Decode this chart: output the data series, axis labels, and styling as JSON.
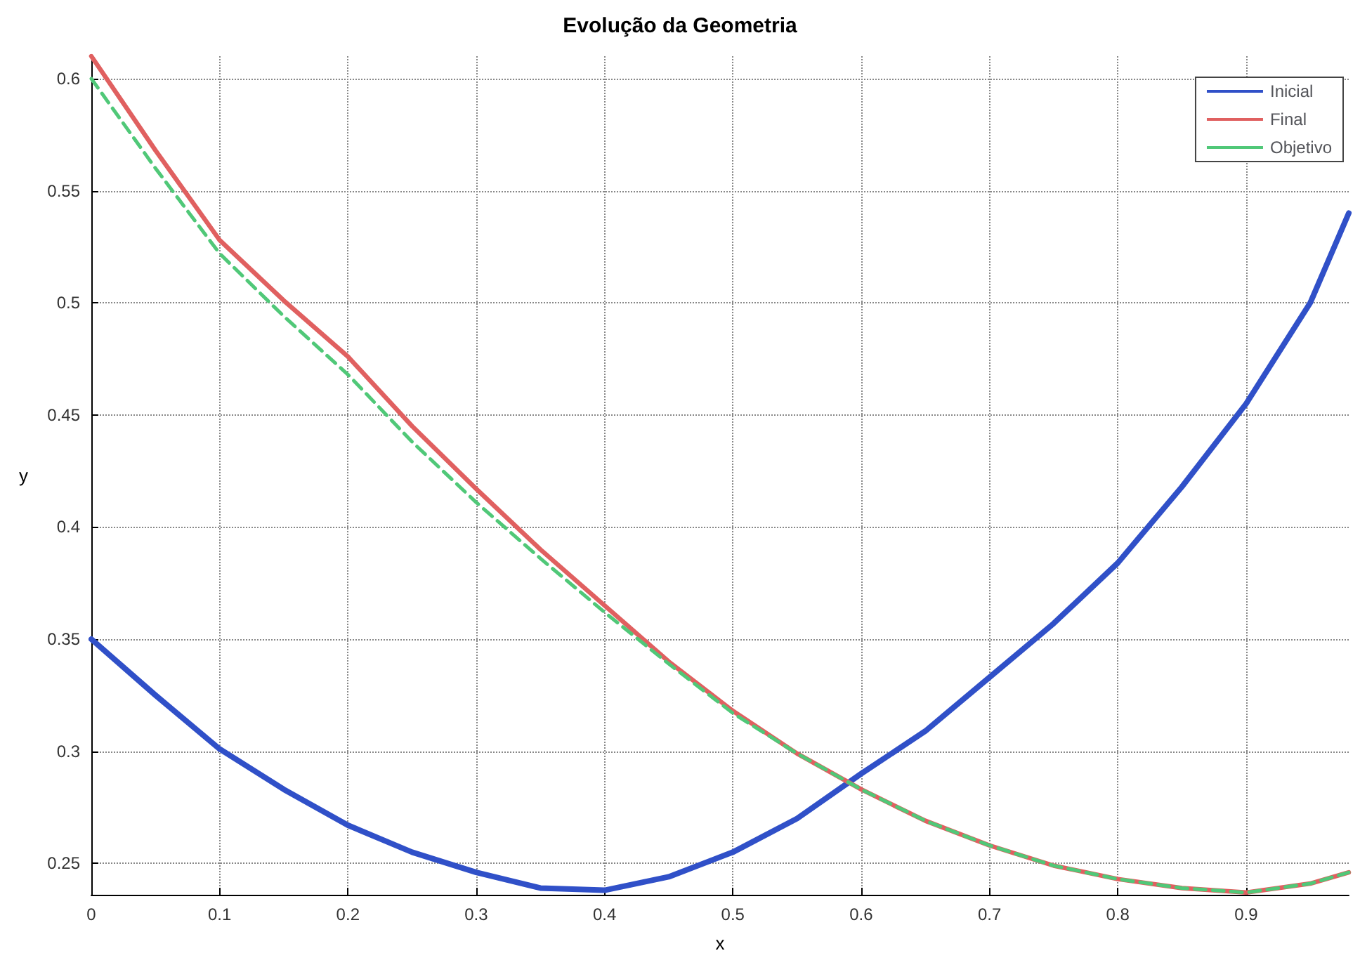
{
  "chart_data": {
    "type": "line",
    "title": "Evolução da Geometria",
    "xlabel": "x",
    "ylabel": "y",
    "x": [
      0,
      0.05,
      0.1,
      0.15,
      0.2,
      0.25,
      0.3,
      0.35,
      0.4,
      0.45,
      0.5,
      0.55,
      0.6,
      0.65,
      0.7,
      0.75,
      0.8,
      0.85,
      0.9,
      0.95,
      0.98
    ],
    "series": [
      {
        "name": "Inicial",
        "color": "#3050c8",
        "line_style": "solid",
        "values": [
          0.35,
          0.325,
          0.301,
          0.283,
          0.267,
          0.255,
          0.246,
          0.239,
          0.238,
          0.244,
          0.255,
          0.27,
          0.29,
          0.309,
          0.333,
          0.357,
          0.384,
          0.418,
          0.455,
          0.5,
          0.54
        ]
      },
      {
        "name": "Final",
        "color": "#e06060",
        "line_style": "solid",
        "values": [
          0.61,
          0.568,
          0.528,
          0.501,
          0.476,
          0.445,
          0.417,
          0.39,
          0.365,
          0.34,
          0.318,
          0.299,
          0.283,
          0.269,
          0.258,
          0.249,
          0.243,
          0.239,
          0.237,
          0.241,
          0.246
        ]
      },
      {
        "name": "Objetivo",
        "color": "#50c878",
        "line_style": "dashed",
        "values": [
          0.6,
          0.56,
          0.522,
          0.494,
          0.468,
          0.438,
          0.411,
          0.386,
          0.362,
          0.339,
          0.317,
          0.299,
          0.283,
          0.269,
          0.258,
          0.249,
          0.243,
          0.239,
          0.237,
          0.241,
          0.246
        ]
      }
    ],
    "xlim": [
      0,
      0.98
    ],
    "xticks": [
      0,
      0.1,
      0.2,
      0.3,
      0.4,
      0.5,
      0.6,
      0.7,
      0.8,
      0.9
    ],
    "ylim": [
      0.236,
      0.61
    ],
    "yticks": [
      0.25,
      0.3,
      0.35,
      0.4,
      0.45,
      0.5,
      0.55,
      0.6
    ],
    "grid": true,
    "legend": "top right",
    "marker": "none"
  }
}
